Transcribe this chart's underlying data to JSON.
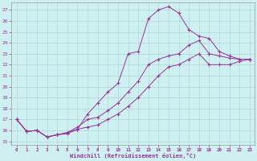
{
  "xlabel": "Windchill (Refroidissement éolien,°C)",
  "background_color": "#cef0f0",
  "grid_color": "#aed8d8",
  "line_color": "#993399",
  "xlim_min": -0.5,
  "xlim_max": 23.5,
  "ylim_min": 14.7,
  "ylim_max": 27.7,
  "yticks": [
    15,
    16,
    17,
    18,
    19,
    20,
    21,
    22,
    23,
    24,
    25,
    26,
    27
  ],
  "xticks": [
    0,
    1,
    2,
    3,
    4,
    5,
    6,
    7,
    8,
    9,
    10,
    11,
    12,
    13,
    14,
    15,
    16,
    17,
    18,
    19,
    20,
    21,
    22,
    23
  ],
  "series1_x": [
    0,
    1,
    2,
    3,
    4,
    5,
    6,
    7,
    8,
    9,
    10,
    11,
    12,
    13,
    14,
    15,
    16,
    17,
    18,
    19,
    20,
    21,
    22,
    23
  ],
  "series1_y": [
    17.0,
    15.9,
    16.0,
    15.4,
    15.6,
    15.7,
    16.1,
    17.5,
    18.5,
    19.5,
    20.3,
    23.0,
    23.2,
    26.2,
    27.0,
    27.3,
    26.7,
    25.2,
    24.6,
    24.4,
    23.2,
    22.8,
    22.5,
    22.5
  ],
  "series2_x": [
    0,
    1,
    2,
    3,
    4,
    5,
    6,
    7,
    8,
    9,
    10,
    11,
    12,
    13,
    14,
    15,
    16,
    17,
    18,
    19,
    20,
    21,
    22,
    23
  ],
  "series2_y": [
    17.0,
    15.9,
    16.0,
    15.4,
    15.6,
    15.8,
    16.3,
    17.0,
    17.2,
    17.8,
    18.5,
    19.5,
    20.5,
    22.0,
    22.5,
    22.8,
    23.0,
    23.8,
    24.2,
    23.0,
    22.8,
    22.6,
    22.5,
    22.5
  ],
  "series3_x": [
    0,
    1,
    2,
    3,
    4,
    5,
    6,
    7,
    8,
    9,
    10,
    11,
    12,
    13,
    14,
    15,
    16,
    17,
    18,
    19,
    20,
    21,
    22,
    23
  ],
  "series3_y": [
    17.0,
    15.9,
    16.0,
    15.4,
    15.6,
    15.8,
    16.1,
    16.3,
    16.5,
    17.0,
    17.5,
    18.2,
    19.0,
    20.0,
    21.0,
    21.8,
    22.0,
    22.5,
    23.0,
    22.0,
    22.0,
    22.0,
    22.3,
    22.5
  ]
}
